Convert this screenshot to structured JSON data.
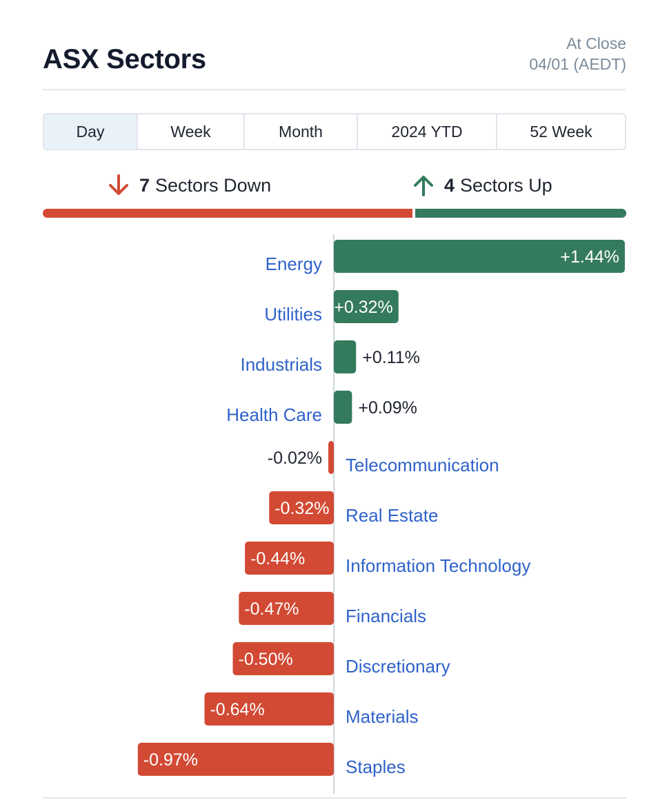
{
  "header": {
    "title": "ASX Sectors",
    "status": "At Close",
    "date": "04/01 (AEDT)"
  },
  "tabs": [
    {
      "label": "Day",
      "active": true
    },
    {
      "label": "Week",
      "active": false
    },
    {
      "label": "Month",
      "active": false
    },
    {
      "label": "2024 YTD",
      "active": false
    },
    {
      "label": "52 Week",
      "active": false
    }
  ],
  "summary": {
    "down_count": "7",
    "down_label": "Sectors Down",
    "up_count": "4",
    "up_label": "Sectors Up"
  },
  "colors": {
    "up": "#347a5c",
    "down": "#d24a34",
    "link": "#2f62c9",
    "value_text": "#1f2430"
  },
  "icons": {
    "down": "arrow-down-icon",
    "up": "arrow-up-icon"
  },
  "chart_data": {
    "type": "bar",
    "orientation": "horizontal-diverging",
    "unit": "%",
    "categories": [
      "Energy",
      "Utilities",
      "Industrials",
      "Health Care",
      "Telecommunication",
      "Real Estate",
      "Information Technology",
      "Financials",
      "Discretionary",
      "Materials",
      "Staples"
    ],
    "values": [
      1.44,
      0.32,
      0.11,
      0.09,
      -0.02,
      -0.32,
      -0.44,
      -0.47,
      -0.5,
      -0.64,
      -0.97
    ],
    "labels": [
      "+1.44%",
      "+0.32%",
      "+0.11%",
      "+0.09%",
      "-0.02%",
      "-0.32%",
      "-0.44%",
      "-0.47%",
      "-0.50%",
      "-0.64%",
      "-0.97%"
    ]
  }
}
